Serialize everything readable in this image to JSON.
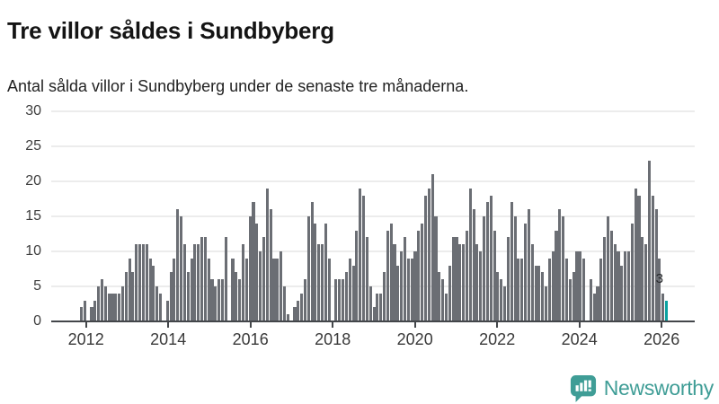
{
  "header": {
    "title": "Tre villor såldes i Sundbyberg",
    "subtitle": "Antal sålda villor i Sundbyberg under de senaste tre månaderna."
  },
  "chart_data": {
    "type": "bar",
    "title": "Tre villor såldes i Sundbyberg",
    "subtitle": "Antal sålda villor i Sundbyberg under de senaste tre månaderna.",
    "x_unit": "month",
    "x_start": "2011-11",
    "x_end": "2026-01",
    "xlabel": "",
    "ylabel": "",
    "ylim": [
      0,
      30
    ],
    "yticks": [
      0,
      5,
      10,
      15,
      20,
      25,
      30
    ],
    "xticks": [
      2012,
      2014,
      2016,
      2018,
      2020,
      2022,
      2024,
      2026
    ],
    "grid": true,
    "bar_color": "#6b6e74",
    "values": [
      2,
      3,
      0,
      2,
      3,
      5,
      6,
      5,
      4,
      4,
      4,
      4,
      5,
      7,
      9,
      7,
      11,
      11,
      11,
      11,
      9,
      8,
      5,
      4,
      0,
      3,
      7,
      9,
      16,
      15,
      11,
      7,
      9,
      11,
      11,
      12,
      12,
      9,
      6,
      5,
      6,
      6,
      12,
      0,
      9,
      7,
      6,
      11,
      9,
      15,
      17,
      14,
      10,
      12,
      19,
      16,
      9,
      9,
      10,
      5,
      1,
      0,
      2,
      3,
      4,
      6,
      15,
      17,
      14,
      11,
      11,
      14,
      9,
      0,
      6,
      6,
      6,
      7,
      9,
      8,
      13,
      19,
      18,
      12,
      5,
      2,
      4,
      4,
      7,
      13,
      14,
      11,
      8,
      10,
      12,
      9,
      9,
      10,
      13,
      14,
      18,
      19,
      21,
      15,
      7,
      6,
      4,
      8,
      12,
      12,
      11,
      11,
      13,
      19,
      16,
      11,
      10,
      15,
      17,
      18,
      13,
      7,
      6,
      5,
      12,
      17,
      15,
      9,
      9,
      14,
      16,
      11,
      8,
      8,
      7,
      5,
      9,
      10,
      13,
      16,
      15,
      9,
      6,
      7,
      10,
      10,
      9,
      0,
      6,
      4,
      5,
      9,
      12,
      15,
      13,
      11,
      10,
      8,
      10,
      10,
      14,
      19,
      18,
      12,
      11,
      23,
      18,
      16,
      9,
      4,
      3
    ],
    "highlight": {
      "index": 170,
      "value": 3,
      "label": "3",
      "color": "#0aa2a0"
    }
  },
  "footer": {
    "brand": "Newsworthy",
    "brand_color": "#3f9d96",
    "icon": "newsworthy-speech-bubble-chart-icon"
  }
}
